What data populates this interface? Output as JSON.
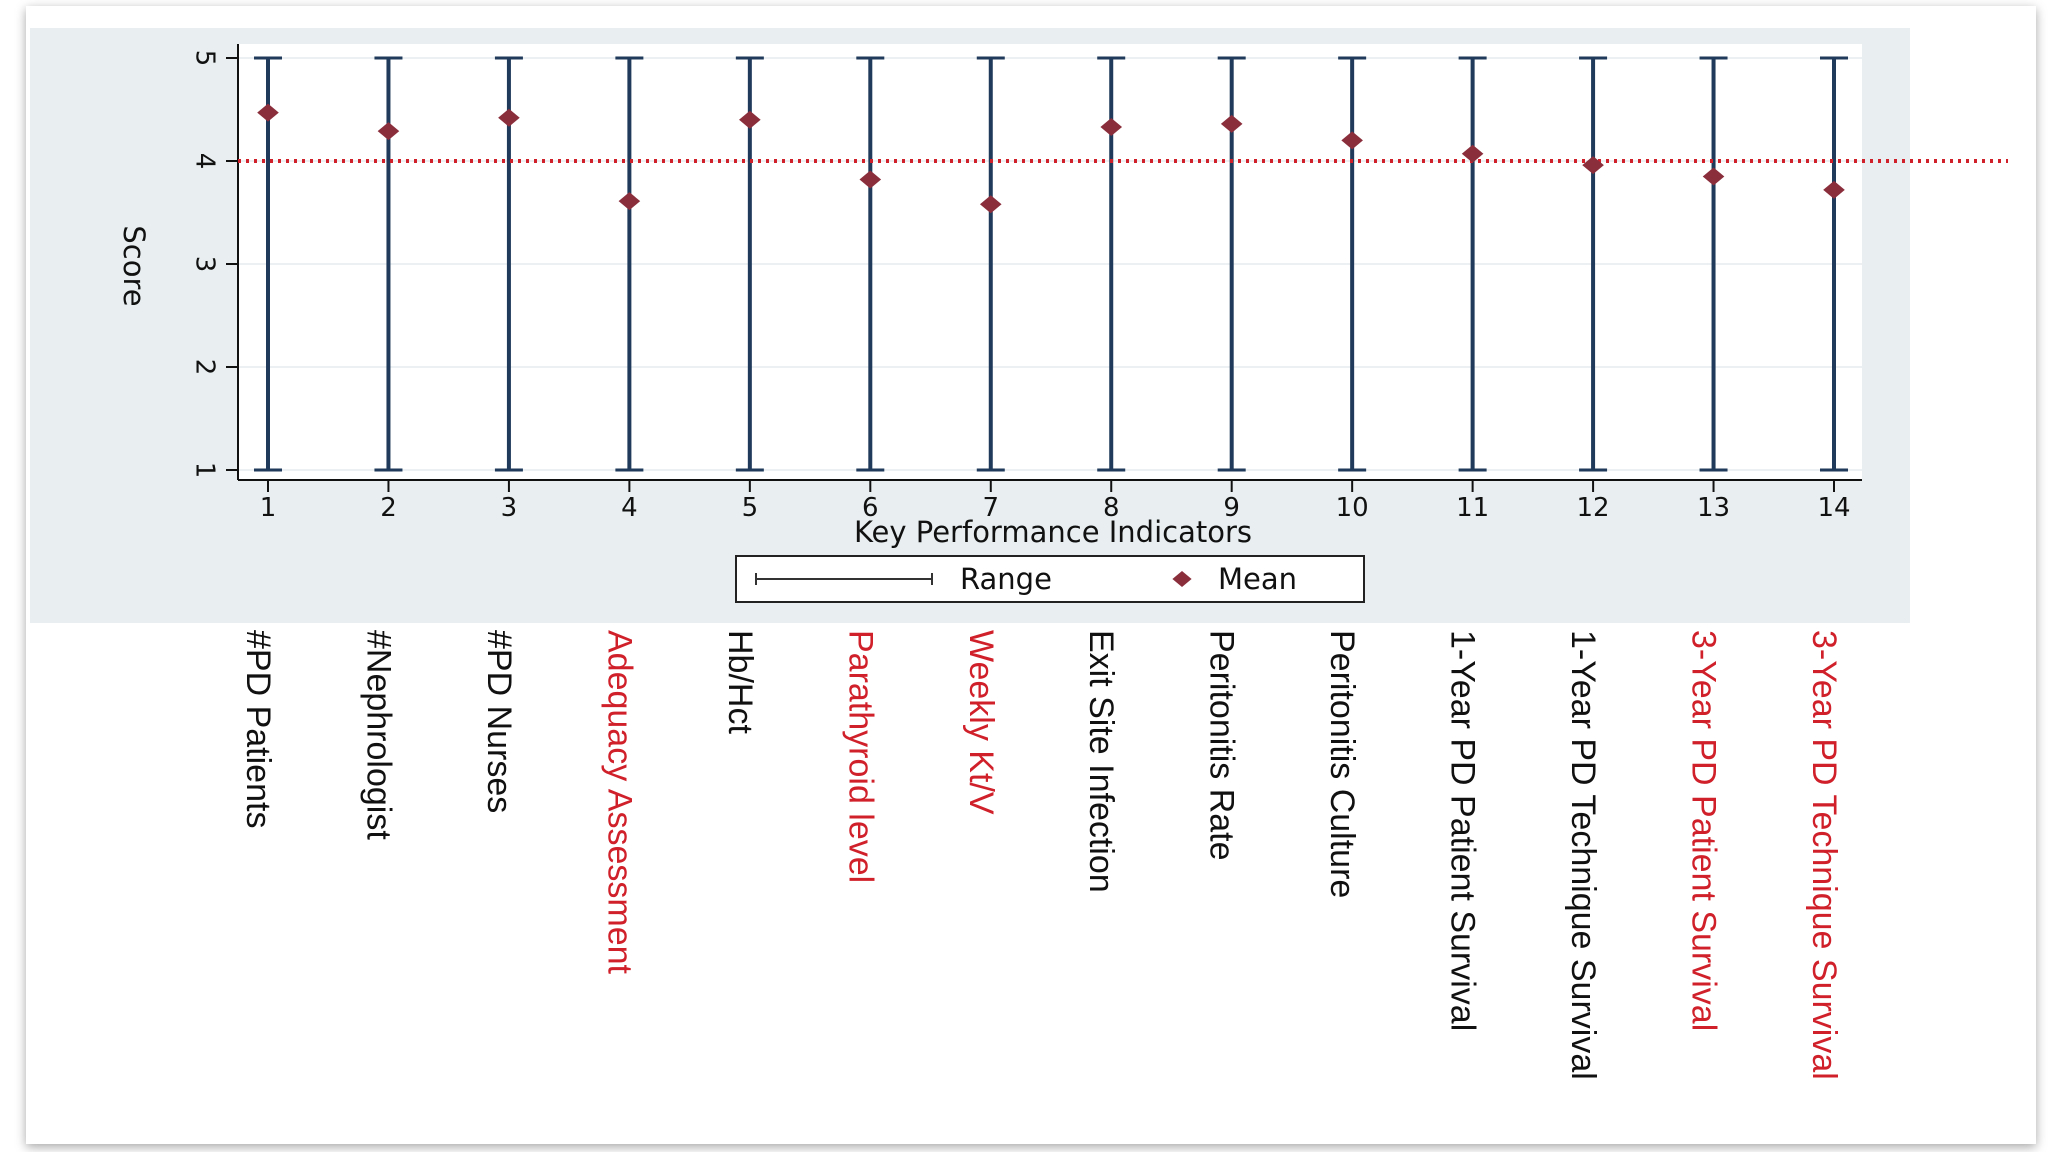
{
  "chart_data": {
    "type": "scatter",
    "title": "",
    "xlabel": "Key Performance Indicators",
    "ylabel": "Score",
    "x": [
      1,
      2,
      3,
      4,
      5,
      6,
      7,
      8,
      9,
      10,
      11,
      12,
      13,
      14
    ],
    "ylim": [
      1,
      5
    ],
    "yticks": [
      1,
      2,
      3,
      4,
      5
    ],
    "series": [
      {
        "name": "Range",
        "type": "range",
        "low": [
          1,
          1,
          1,
          1,
          1,
          1,
          1,
          1,
          1,
          1,
          1,
          1,
          1,
          1
        ],
        "high": [
          5,
          5,
          5,
          5,
          5,
          5,
          5,
          5,
          5,
          5,
          5,
          5,
          5,
          5
        ],
        "color": "#1f3a5a"
      },
      {
        "name": "Mean",
        "type": "marker",
        "values": [
          4.47,
          4.29,
          4.42,
          3.61,
          4.4,
          3.82,
          3.58,
          4.33,
          4.36,
          4.2,
          4.07,
          3.96,
          3.85,
          3.72
        ],
        "color": "#8b2e3c"
      }
    ],
    "reference_line": {
      "y": 4,
      "color": "#d0202a",
      "style": "dotted"
    },
    "categories": [
      {
        "label": "#PD Patients",
        "color": "#111111"
      },
      {
        "label": "#Nephrologist",
        "color": "#111111"
      },
      {
        "label": "#PD Nurses",
        "color": "#111111"
      },
      {
        "label": "Adequacy Assessment",
        "color": "#d0202a"
      },
      {
        "label": "Hb/Hct",
        "color": "#111111"
      },
      {
        "label": "Parathyroid level",
        "color": "#d0202a"
      },
      {
        "label": "Weekly Kt/V",
        "color": "#d0202a"
      },
      {
        "label": "Exit Site Infection",
        "color": "#111111"
      },
      {
        "label": "Peritonitis Rate",
        "color": "#111111"
      },
      {
        "label": "Peritonitis Culture",
        "color": "#111111"
      },
      {
        "label": "1-Year PD Patient Survival",
        "color": "#111111"
      },
      {
        "label": "1-Year PD Technique Survival",
        "color": "#111111"
      },
      {
        "label": "3-Year PD Patient Survival",
        "color": "#d0202a"
      },
      {
        "label": "3-Year PD Technique Survival",
        "color": "#d0202a"
      }
    ],
    "legend": {
      "placement": "bottom",
      "items": [
        "Range",
        "Mean"
      ]
    },
    "grid": true
  }
}
